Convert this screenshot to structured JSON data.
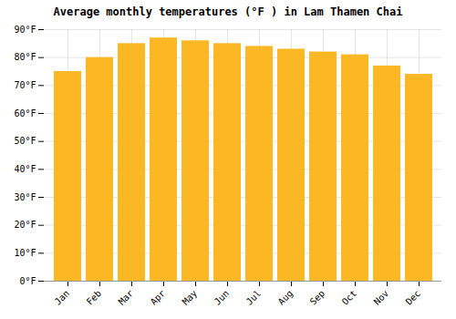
{
  "chart_data": {
    "type": "bar",
    "title": "Average monthly temperatures (°F ) in Lam Thamen Chai",
    "categories": [
      "Jan",
      "Feb",
      "Mar",
      "Apr",
      "May",
      "Jun",
      "Jul",
      "Aug",
      "Sep",
      "Oct",
      "Nov",
      "Dec"
    ],
    "values": [
      75,
      80,
      85,
      87,
      86,
      85,
      84,
      83,
      82,
      81,
      77,
      74
    ],
    "color": "#FBB824",
    "ylim": [
      0,
      90
    ],
    "yticks": [
      {
        "value": 0,
        "label": "0°F"
      },
      {
        "value": 10,
        "label": "10°F"
      },
      {
        "value": 20,
        "label": "20°F"
      },
      {
        "value": 30,
        "label": "30°F"
      },
      {
        "value": 40,
        "label": "40°F"
      },
      {
        "value": 50,
        "label": "50°F"
      },
      {
        "value": 60,
        "label": "60°F"
      },
      {
        "value": 70,
        "label": "70°F"
      },
      {
        "value": 80,
        "label": "80°F"
      },
      {
        "value": 90,
        "label": "90°F"
      }
    ],
    "grid": true
  }
}
